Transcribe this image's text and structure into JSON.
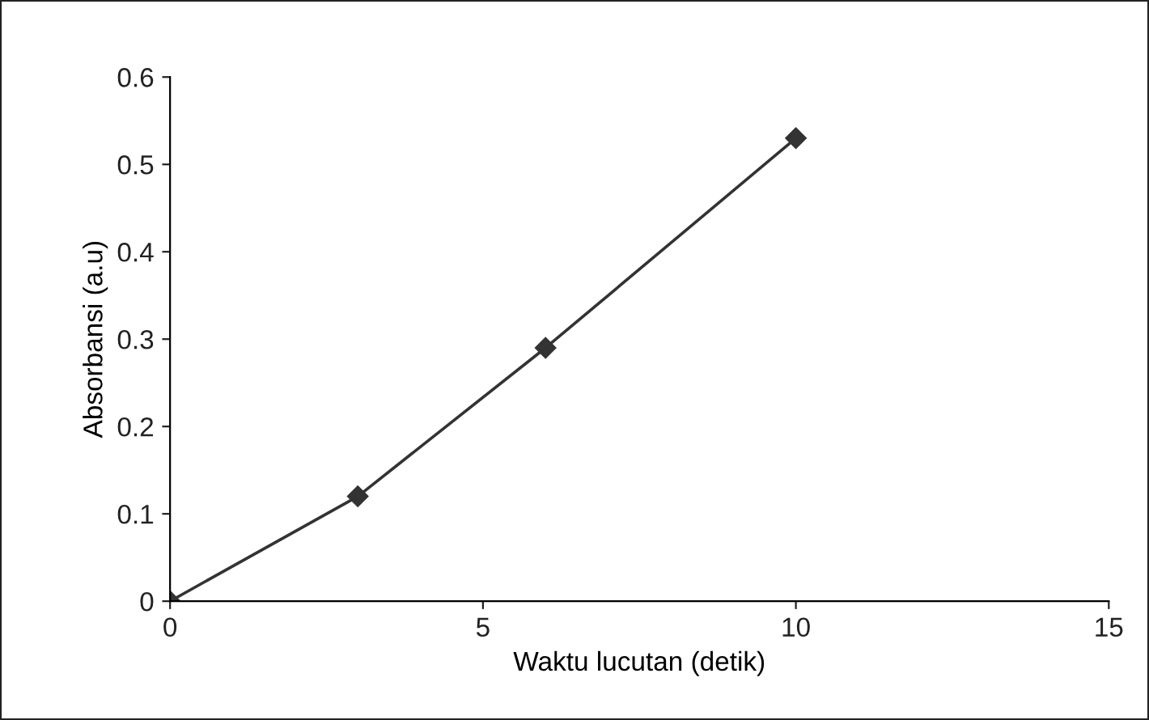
{
  "chart_data": {
    "type": "line",
    "xlabel": "Waktu lucutan (detik)",
    "ylabel": "Absorbansi (a.u)",
    "x": [
      0,
      3,
      6,
      10
    ],
    "series": [
      {
        "color": "#333333",
        "values": [
          0,
          0.12,
          0.29,
          0.53
        ]
      }
    ],
    "xlim": [
      0,
      15
    ],
    "xticks": [
      0,
      5,
      10,
      15
    ],
    "ylim": [
      0,
      0.6
    ],
    "yticks": [
      0,
      0.1,
      0.2,
      0.3,
      0.4,
      0.5,
      0.6
    ],
    "marker": "diamond",
    "line_style": "solid",
    "grid": false,
    "legend": false
  }
}
